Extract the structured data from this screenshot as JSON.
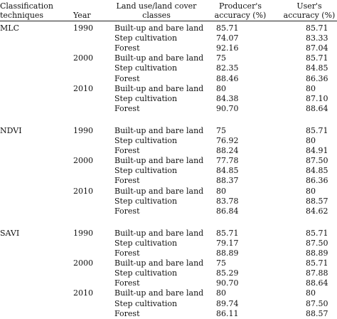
{
  "header": {
    "technique": [
      "Classification",
      "techniques"
    ],
    "year": "Year",
    "class": [
      "Land use/land cover",
      "classes"
    ],
    "producer": [
      "Producer's",
      "accuracy (%)"
    ],
    "user": [
      "User's",
      "accuracy (%)"
    ]
  },
  "rows": [
    {
      "technique": "MLC",
      "year": "1990",
      "class": "Built-up and bare land",
      "producer": "85.71",
      "user": "85.71"
    },
    {
      "technique": "",
      "year": "",
      "class": "Step cultivation",
      "producer": "74.07",
      "user": "83.33"
    },
    {
      "technique": "",
      "year": "",
      "class": "Forest",
      "producer": "92.16",
      "user": "87.04"
    },
    {
      "technique": "",
      "year": "2000",
      "class": "Built-up and bare land",
      "producer": "75",
      "user": "85.71"
    },
    {
      "technique": "",
      "year": "",
      "class": "Step cultivation",
      "producer": "82.35",
      "user": "84.85"
    },
    {
      "technique": "",
      "year": "",
      "class": "Forest",
      "producer": "88.46",
      "user": "86.36"
    },
    {
      "technique": "",
      "year": "2010",
      "class": "Built-up and bare land",
      "producer": "80",
      "user": "80"
    },
    {
      "technique": "",
      "year": "",
      "class": "Step cultivation",
      "producer": "84.38",
      "user": "87.10"
    },
    {
      "technique": "",
      "year": "",
      "class": "Forest",
      "producer": "90.70",
      "user": "88.64"
    },
    {
      "technique": "NDVI",
      "year": "1990",
      "class": "Built-up and bare land",
      "producer": "75",
      "user": "85.71"
    },
    {
      "technique": "",
      "year": "",
      "class": "Step cultivation",
      "producer": "76.92",
      "user": "80"
    },
    {
      "technique": "",
      "year": "",
      "class": "Forest",
      "producer": "88.24",
      "user": "84.91"
    },
    {
      "technique": "",
      "year": "2000",
      "class": "Built-up and bare land",
      "producer": "77.78",
      "user": "87.50"
    },
    {
      "technique": "",
      "year": "",
      "class": "Step cultivation",
      "producer": "84.85",
      "user": "84.85"
    },
    {
      "technique": "",
      "year": "",
      "class": "Forest",
      "producer": "88.37",
      "user": "86.36"
    },
    {
      "technique": "",
      "year": "2010",
      "class": "Built-up and bare land",
      "producer": "80",
      "user": "80"
    },
    {
      "technique": "",
      "year": "",
      "class": "Step cultivation",
      "producer": "83.78",
      "user": "88.57"
    },
    {
      "technique": "",
      "year": "",
      "class": "Forest",
      "producer": "86.84",
      "user": "84.62"
    },
    {
      "technique": "SAVI",
      "year": "1990",
      "class": "Built-up and bare land",
      "producer": "85.71",
      "user": "85.71"
    },
    {
      "technique": "",
      "year": "",
      "class": "Step cultivation",
      "producer": "79.17",
      "user": "87.50"
    },
    {
      "technique": "",
      "year": "",
      "class": "Forest",
      "producer": "88.89",
      "user": "88.89"
    },
    {
      "technique": "",
      "year": "2000",
      "class": "Built-up and bare land",
      "producer": "75",
      "user": "85.71"
    },
    {
      "technique": "",
      "year": "",
      "class": "Step cultivation",
      "producer": "85.29",
      "user": "87.88"
    },
    {
      "technique": "",
      "year": "",
      "class": "Forest",
      "producer": "90.70",
      "user": "88.64"
    },
    {
      "technique": "",
      "year": "2010",
      "class": "Built-up and bare land",
      "producer": "80",
      "user": "80"
    },
    {
      "technique": "",
      "year": "",
      "class": "Step cultivation",
      "producer": "89.74",
      "user": "87.50"
    },
    {
      "technique": "",
      "year": "",
      "class": "Forest",
      "producer": "86.11",
      "user": "88.57"
    }
  ]
}
